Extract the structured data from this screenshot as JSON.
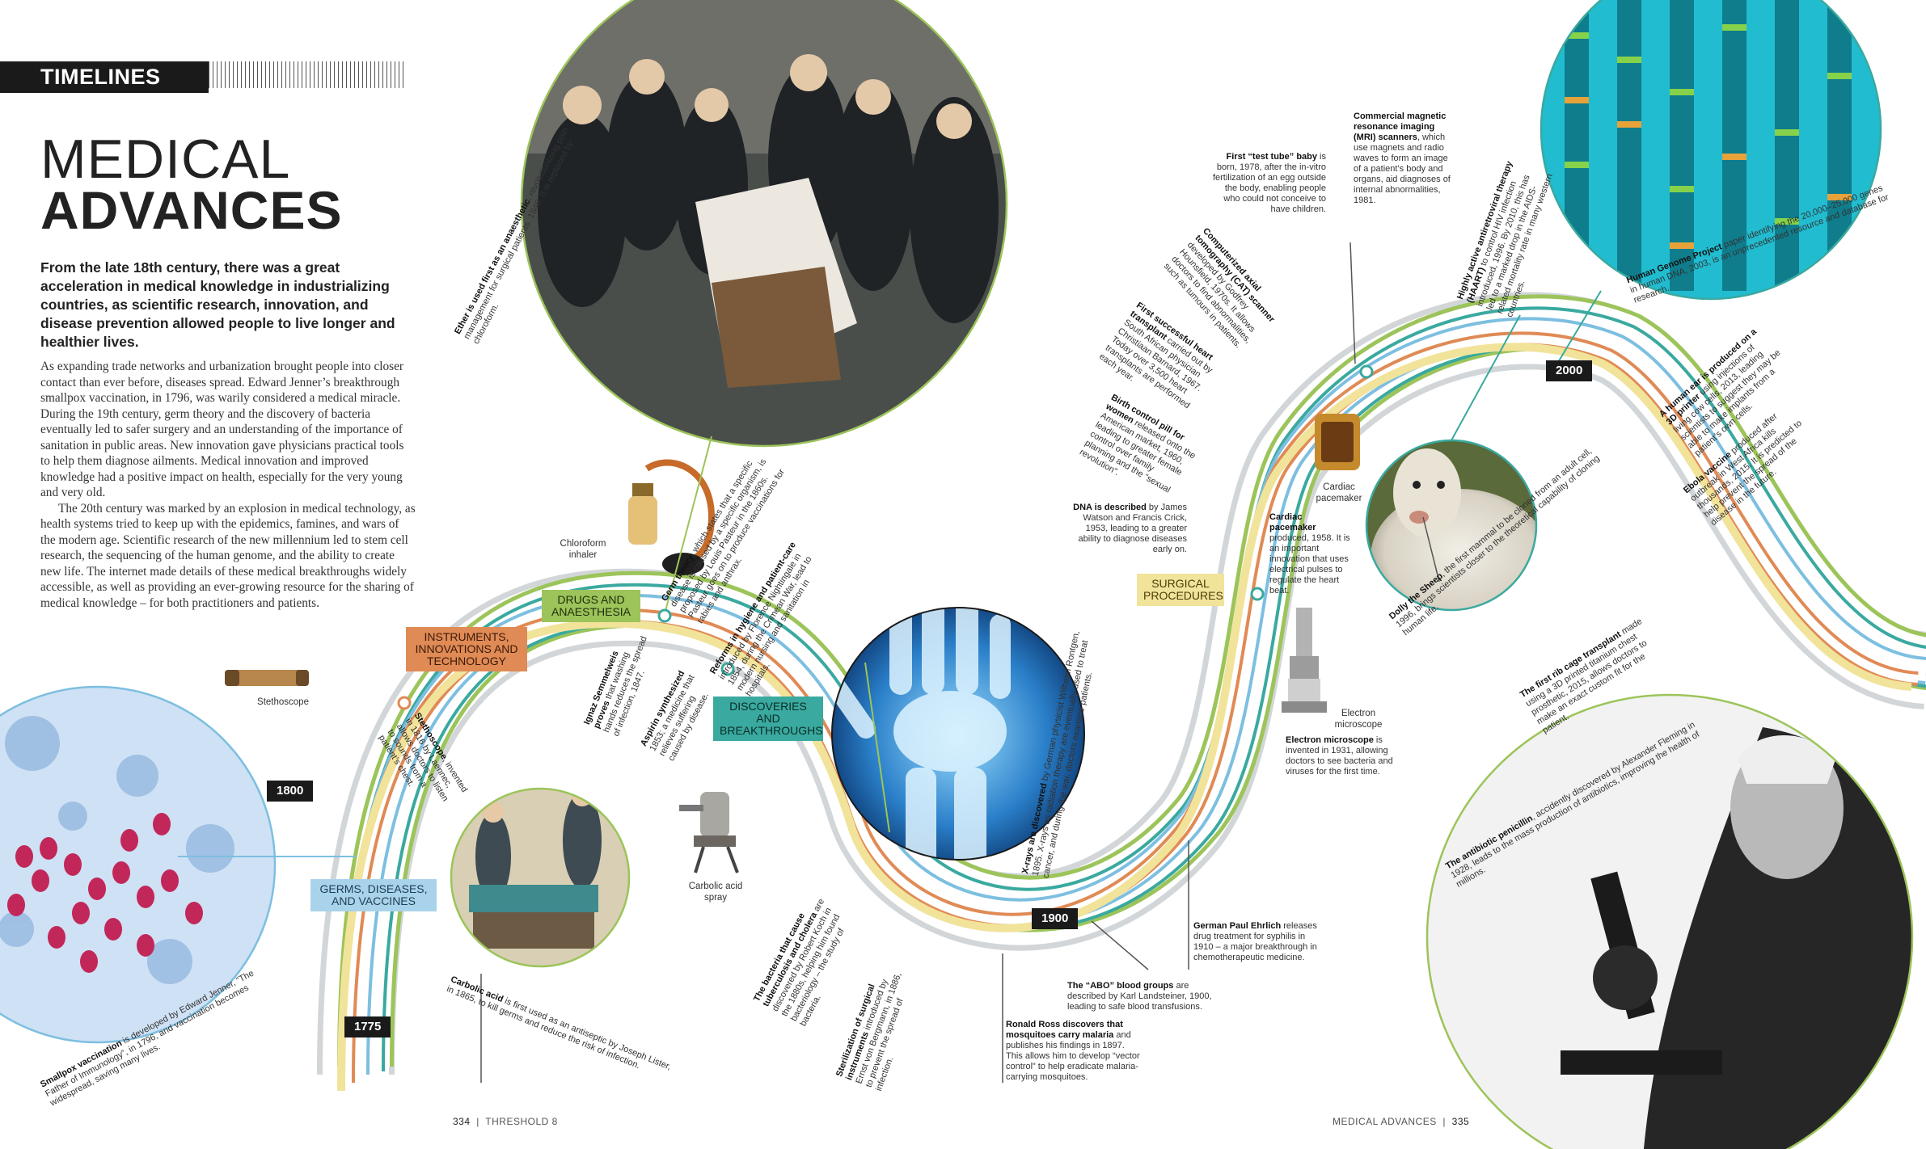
{
  "header": {
    "section": "TIMELINES",
    "title_line1": "MEDICAL",
    "title_line2": "ADVANCES"
  },
  "lead": "From the late 18th century, there was a great acceleration in medical knowledge in industrializing countries, as scientific research, innovation, and disease prevention allowed people to live longer and healthier lives.",
  "body": [
    "As expanding trade networks and urbanization brought people into closer contact than ever before, diseases spread. Edward Jenner’s breakthrough smallpox vaccination, in 1796, was warily considered a medical miracle. During the 19th century, germ theory and the discovery of bacteria eventually led to safer surgery and an understanding of the importance of sanitation in public areas. New innovation gave physicians practical tools to help them diagnose ailments. Medical innovation and improved knowledge had a positive impact on health, especially for the very young and very old.",
    "The 20th century was marked by an explosion in medical technology, as health systems tried to keep up with the epidemics, famines, and wars of the modern age. Scientific research of the new millennium led to stem cell research, the sequencing of the human genome, and the ability to create new life. The internet made details of these medical breakthroughs widely accessible, as well as providing an ever-growing resource for the sharing of medical knowledge – for both practitioners and patients."
  ],
  "categories": {
    "germs": "GERMS, DISEASES, AND VACCINES",
    "instruments": "INSTRUMENTS, INNOVATIONS AND TECHNOLOGY",
    "drugs": "DRUGS AND ANAESTHESIA",
    "discoveries": "DISCOVERIES AND BREAKTHROUGHS",
    "surgical": "SURGICAL PROCEDURES"
  },
  "colors": {
    "germs": "#7dbfe0",
    "instruments": "#e08a55",
    "drugs": "#9cc45a",
    "discoveries": "#3aa99f",
    "surgical": "#f1e39a",
    "grey": "#d2d6d8",
    "year_tag": "#1a1a1a"
  },
  "years": [
    "1775",
    "1800",
    "1900",
    "2000"
  ],
  "objects": {
    "stethoscope": "Stethoscope",
    "chloroform": "Chloroform inhaler",
    "carbolic_spray": "Carbolic acid spray",
    "pacemaker": "Cardiac pacemaker",
    "microscope": "Electron microscope"
  },
  "events": {
    "smallpox": {
      "bold": "Smallpox vaccination",
      "text": " is developed by Edward Jenner, “The Father of Immunology”, in 1796, and vaccination becomes widespread, saving many lives."
    },
    "stethoscope": {
      "bold": "Stethoscope",
      "text": ", invented in 1816 by Laennec, allows doctors to listen to sounds from a patient’s chest."
    },
    "semmelweis": {
      "bold": "Ignaz Semmelweis proves",
      "text": " that washing hands reduces the spread of infection, 1847."
    },
    "aspirin": {
      "bold": "Aspirin synthesized",
      "text": " 1853; a medicine that relieves suffering caused by disease."
    },
    "germ_theory": {
      "bold": "Germ theory",
      "text": ", which states that a specific disease is caused by a specific organism, is proposed by Louis Pasteur in the 1860s. Pasteur goes on to produce vaccinations for rabies and anthrax."
    },
    "nursing": {
      "bold": "Reforms in hygiene and patient-care",
      "text": " introduced by Florence Nightingale in 1854, during the Crimean War, lead to modern nursing and sanitation in hospitals."
    },
    "ether": {
      "bold": "Ether is used first as an anaesthetic",
      "text": ", revolutionizing pain management for surgical patients, 1846. It is replaced by chloroform."
    },
    "carbolic": {
      "bold": "Carbolic acid",
      "text": " is first used as an antiseptic by Joseph Lister, in 1865, to kill germs and reduce the risk of infection."
    },
    "tb_cholera": {
      "bold": "The bacteria that cause tuberculosis and cholera",
      "text": " are discovered by Robert Koch in the 1880s, helping him found bacteriology – the study of bacteria."
    },
    "sterilization": {
      "bold": "Sterilization of surgical instruments",
      "text": " introduced by Ernst von Bergmann, in 1886, to prevent the spread of infection."
    },
    "ross": {
      "bold": "Ronald Ross discovers that mosquitoes carry malaria",
      "text": " and publishes his findings in 1897. This allows him to develop “vector control” to help eradicate malaria-carrying mosquitoes."
    },
    "abo": {
      "bold": "The “ABO” blood groups",
      "text": " are described by Karl Landsteiner, 1900, leading to safe blood transfusions."
    },
    "ehrlich": {
      "bold": "German Paul Ehrlich",
      "text": " releases drug treatment for syphilis in 1910 – a major breakthrough in chemotherapeutic medicine."
    },
    "xrays": {
      "bold": "X-rays are discovered",
      "text": " by German physicist Wilhelm Rontgen, 1895. X-rays as radiation therapy are eventually used to treat cancer, and during the war, doctors examine patients."
    },
    "electron": {
      "bold": "Electron microscope",
      "text": " is invented in 1931, allowing doctors to see bacteria and viruses for the first time."
    },
    "penicillin": {
      "bold": "The antibiotic penicillin",
      "text": ", accidently discovered by Alexander Fleming in 1928, leads to the mass production of antibiotics, improving the health of millions."
    },
    "dna": {
      "bold": "DNA is described",
      "text": " by James Watson and Francis Crick, 1953, leading to a greater ability to diagnose diseases early on."
    },
    "pacemaker": {
      "bold": "Cardiac pacemaker",
      "text": " produced, 1958. It is an important innovation that uses electrical pulses to regulate the heart beat."
    },
    "pill": {
      "bold": "Birth control pill for women",
      "text": " released onto the American market, 1960, leading to greater female control over family planning and the “sexual revolution”."
    },
    "heart": {
      "bold": "First successful heart transplant",
      "text": " carried out by South African physician Christiaan Barnard, 1967. Today over 3,500 heart transplants are performed each year."
    },
    "cat": {
      "bold": "Computerized axial tomography (CAT) scanner",
      "text": " developed by Godfrey Hounsfield, 1970s. It allows doctors to find abnormalities, such as tumours in patients."
    },
    "ivf": {
      "bold": "First “test tube” baby",
      "text": " is born, 1978, after the in-vitro fertilization of an egg outside the body, enabling people who could not conceive to have children."
    },
    "mri": {
      "bold": "Commercial magnetic resonance imaging (MRI) scanners",
      "text": ", which use magnets and radio waves to form an image of a patient’s body and organs, aid diagnoses of internal abnormalities, 1981."
    },
    "haart": {
      "bold": "Highly active antiretroviral therapy (HAART)",
      "text": " to control HIV infection introduced, 1996. By 2010, this has led to a marked drop in the AIDS-related mortality rate in many western countries."
    },
    "dolly": {
      "bold": "Dolly the Sheep",
      "text": ", the first mammal to be cloned from an adult cell, 1996, brings scientists closer to the theoretical capability of cloning human life."
    },
    "genome": {
      "bold": "Human Genome Project",
      "text": " paper identifying the 20,000–25,000 genes in human DNA, 2003, is an unprecedented resource and database for research."
    },
    "ear": {
      "bold": "A human ear is produced on a 3D printer",
      "text": " using injections of living cow cells, 2013, leading scientists to suggest they may be able to make implants from a patient’s own cells."
    },
    "ebola": {
      "bold": "Ebola vaccine",
      "text": " produced after outbreak in West Africa kills thousands, 2015. It is predicted to help prevent the spread of the disease in the future."
    },
    "rib": {
      "bold": "The first rib cage transplant",
      "text": " made using a 3D printed titanium chest prosthetic, 2015, allows doctors to make an exact custom fit for the patient."
    }
  },
  "footer": {
    "left_page": "334",
    "left_section": "THRESHOLD 8",
    "right_section": "MEDICAL ADVANCES",
    "right_page": "335"
  }
}
